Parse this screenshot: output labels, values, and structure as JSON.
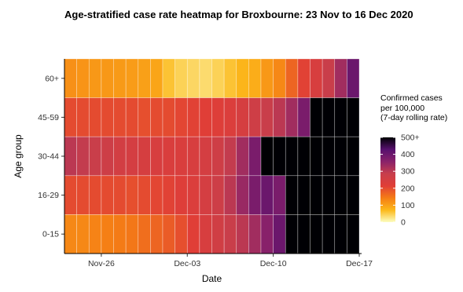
{
  "chart_data": {
    "type": "heatmap",
    "title": "Age-stratified case rate heatmap for Broxbourne: 23 Nov to 16 Dec 2020",
    "xlabel": "Date",
    "ylabel": "Age group",
    "x_start": "2020-11-23",
    "x_end": "2020-12-16",
    "x_ticks": [
      "Nov-26",
      "Dec-03",
      "Dec-10",
      "Dec-17"
    ],
    "y_categories": [
      "60+",
      "45-59",
      "30-44",
      "16-29",
      "0-15"
    ],
    "values": {
      "60+": [
        120,
        115,
        110,
        110,
        108,
        105,
        100,
        95,
        60,
        45,
        40,
        35,
        45,
        60,
        75,
        85,
        110,
        130,
        170,
        210,
        240,
        280,
        330,
        400
      ],
      "45-59": [
        200,
        200,
        200,
        200,
        200,
        200,
        195,
        200,
        200,
        205,
        210,
        215,
        220,
        230,
        245,
        265,
        280,
        300,
        330,
        380,
        500,
        500,
        500,
        500
      ],
      "30-44": [
        300,
        290,
        280,
        270,
        255,
        250,
        245,
        240,
        235,
        235,
        240,
        250,
        265,
        290,
        330,
        380,
        500,
        500,
        500,
        500,
        500,
        500,
        500,
        500
      ],
      "16-29": [
        200,
        200,
        200,
        200,
        200,
        195,
        200,
        205,
        210,
        220,
        230,
        250,
        270,
        300,
        340,
        380,
        400,
        380,
        500,
        500,
        500,
        500,
        500,
        500
      ],
      "0-15": [
        130,
        130,
        135,
        140,
        145,
        150,
        160,
        170,
        180,
        195,
        215,
        240,
        260,
        280,
        300,
        330,
        360,
        400,
        500,
        500,
        500,
        500,
        500,
        500
      ]
    },
    "legend": {
      "title": [
        "Confirmed cases",
        "per 100,000",
        "(7-day rolling rate)"
      ],
      "min": 0,
      "max": 500,
      "ticks": [
        0,
        100,
        200,
        300,
        400,
        500
      ],
      "tick_labels": [
        "0",
        "100",
        "200",
        "300",
        "400",
        "500+"
      ],
      "colors": [
        "#fcfdbf",
        "#fcb81a",
        "#f57d15",
        "#e03e37",
        "#c73e4c",
        "#8a226a",
        "#57106e",
        "#000004"
      ],
      "placement": "right"
    }
  }
}
